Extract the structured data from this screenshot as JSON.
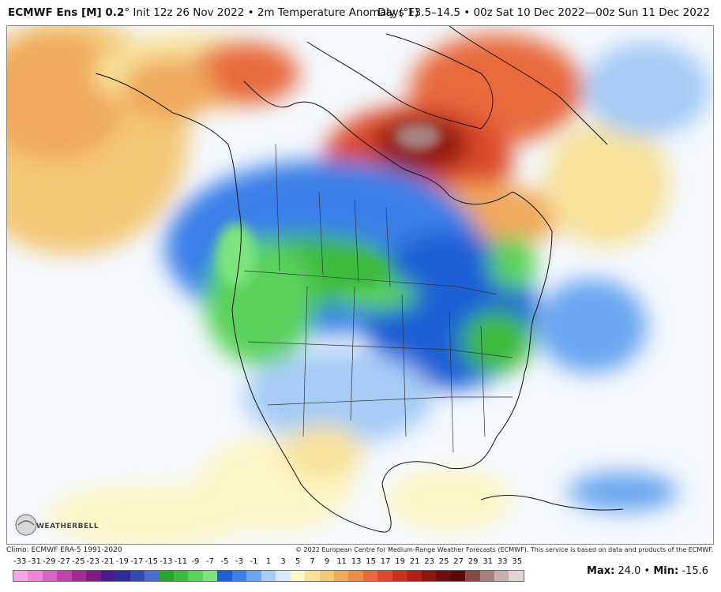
{
  "header": {
    "model": "ECMWF Ens [M] 0.2",
    "degree": "°",
    "init": "Init 12z 26 Nov 2022",
    "separator": "•",
    "field": "2m Temperature Anomaly (°F)",
    "valid": "Days 13.5–14.5  •  00z Sat 10 Dec 2022—00z Sun 11 Dec 2022"
  },
  "footer": {
    "climo": "Climo: ECMWF ERA-5 1991-2020",
    "copyright": "© 2022 European Centre for Medium-Range Weather Forecasts (ECMWF). This service is based on data and products of the ECMWF."
  },
  "logo": {
    "text": "WEATHERBELL",
    "icon": "weatherbell-logo-icon"
  },
  "stats": {
    "max_label": "Max:",
    "max": "24.0",
    "sep": "•",
    "min_label": "Min:",
    "min": "-15.6"
  },
  "scale": {
    "labels": [
      "-33",
      "-31",
      "-29",
      "-27",
      "-25",
      "-23",
      "-21",
      "-19",
      "-17",
      "-15",
      "-13",
      "-11",
      "-9",
      "-7",
      "-5",
      "-3",
      "-1",
      "1",
      "3",
      "5",
      "7",
      "9",
      "11",
      "13",
      "15",
      "17",
      "19",
      "21",
      "23",
      "25",
      "27",
      "29",
      "31",
      "33",
      "35"
    ],
    "colors": [
      "#f6a8e6",
      "#ec86d8",
      "#d964c4",
      "#c142ac",
      "#a22a94",
      "#7e1a86",
      "#4b1a8c",
      "#2e2a9c",
      "#3448b4",
      "#4a6ed0",
      "#2aa42a",
      "#3cbc3c",
      "#5ad25a",
      "#7ee47e",
      "#1f5fd6",
      "#3b80e8",
      "#6aa6f0",
      "#a6ccf6",
      "#d6e8fa",
      "#fdf6c6",
      "#f8e29a",
      "#f3c877",
      "#f0a95c",
      "#ec8b4b",
      "#e86a3c",
      "#dc4a2c",
      "#c8321e",
      "#b02014",
      "#8e1410",
      "#6e0e0c",
      "#5a0a0a",
      "#8a4a48",
      "#a8807e",
      "#c6b0ae",
      "#e2d6d4"
    ]
  }
}
